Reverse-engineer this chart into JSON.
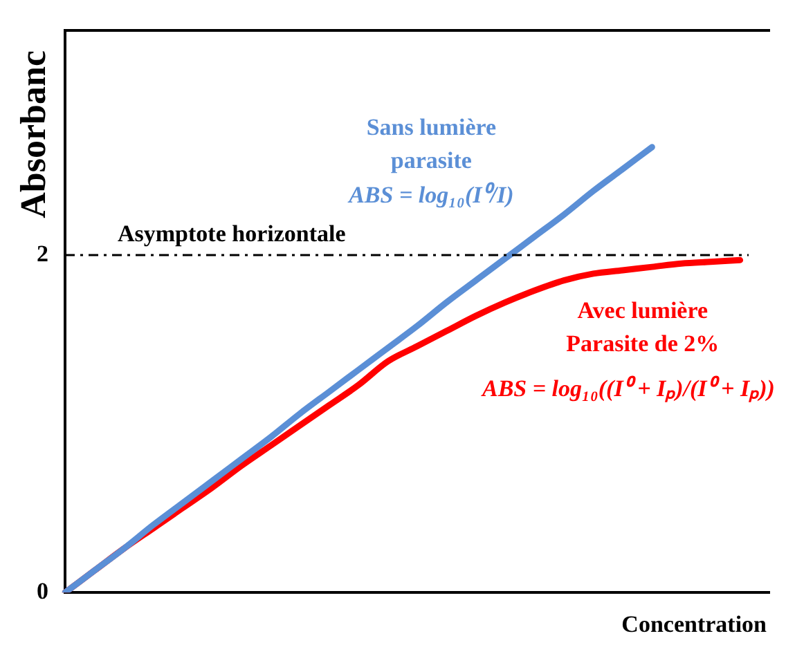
{
  "chart_data": {
    "type": "line",
    "xlabel": "Concentration",
    "ylabel": "Absorbanc",
    "categories": [
      null,
      null,
      null,
      null,
      null,
      null,
      null,
      null,
      null,
      null,
      null,
      null,
      null,
      null,
      null,
      null,
      null,
      null,
      null,
      null,
      null,
      null,
      null,
      null,
      null
    ],
    "series": [
      {
        "name": "Sans lumière parasite",
        "color": "#5b8fd6",
        "values": [
          0,
          0.13,
          0.26,
          0.4,
          0.53,
          0.66,
          0.79,
          0.92,
          1.06,
          1.19,
          1.32,
          1.45,
          1.58,
          1.72,
          1.85,
          1.98,
          2.11,
          2.24,
          2.38,
          2.51,
          2.64,
          null,
          null,
          null,
          null
        ]
      },
      {
        "name": "Avec lumière Parasite de 2%",
        "color": "#ff0000",
        "values": [
          0,
          0.13,
          0.26,
          0.38,
          0.5,
          0.62,
          0.75,
          0.87,
          0.99,
          1.11,
          1.23,
          1.37,
          1.46,
          1.55,
          1.64,
          1.72,
          1.79,
          1.85,
          1.89,
          1.91,
          1.93,
          1.95,
          1.96,
          1.97,
          null
        ]
      }
    ],
    "ylim": [
      0,
      3.33
    ],
    "yticks": [
      0,
      2
    ],
    "grid": false,
    "legend": false,
    "marker": "none",
    "line_style": "solid",
    "ref_lines": [
      {
        "axis": "y",
        "value": 2,
        "label": "Asymptote horizontale",
        "color": "#000000",
        "line_style": "dashdot"
      }
    ],
    "annotations": [
      "ABS = log₁₀(I⁰/I)",
      "ABS = log₁₀((I⁰ + Iₚ)/(I⁰ + Iₚ))"
    ]
  }
}
